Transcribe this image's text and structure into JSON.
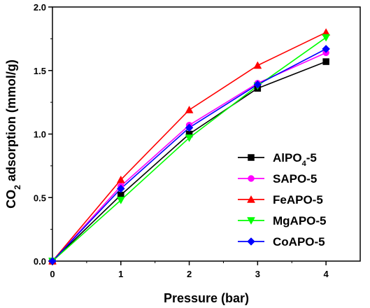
{
  "chart_data": {
    "type": "line",
    "title": "",
    "xlabel": "Pressure (bar)",
    "ylabel_parts": [
      "CO",
      "2",
      " adsorption (mmol/g)"
    ],
    "xlim": [
      0,
      4.5
    ],
    "ylim": [
      0,
      2.0
    ],
    "xticks": [
      0,
      1,
      2,
      3,
      4
    ],
    "xtick_labels": [
      "0",
      "1",
      "2",
      "3",
      "4"
    ],
    "yticks": [
      0.0,
      0.5,
      1.0,
      1.5,
      2.0
    ],
    "ytick_labels": [
      "0.0",
      "0.5",
      "1.0",
      "1.5",
      "2.0"
    ],
    "grid": false,
    "legend_position": "lower-right",
    "x": [
      0,
      1,
      2,
      3,
      4
    ],
    "series": [
      {
        "name_parts": [
          "AlPO",
          "4",
          "-5"
        ],
        "color": "#000000",
        "marker": "square",
        "values": [
          0.0,
          0.52,
          1.0,
          1.36,
          1.57
        ]
      },
      {
        "name_parts": [
          "SAPO-5"
        ],
        "color": "#ff00ff",
        "marker": "circle",
        "values": [
          0.0,
          0.59,
          1.07,
          1.4,
          1.64
        ]
      },
      {
        "name_parts": [
          "FeAPO-5"
        ],
        "color": "#ff0000",
        "marker": "triangle-up",
        "values": [
          0.0,
          0.64,
          1.19,
          1.54,
          1.8
        ]
      },
      {
        "name_parts": [
          "MgAPO-5"
        ],
        "color": "#00ff00",
        "marker": "triangle-down",
        "values": [
          0.0,
          0.48,
          0.97,
          1.38,
          1.76
        ]
      },
      {
        "name_parts": [
          "CoAPO-5"
        ],
        "color": "#0000ff",
        "marker": "diamond",
        "values": [
          0.0,
          0.57,
          1.05,
          1.39,
          1.67
        ]
      }
    ]
  }
}
